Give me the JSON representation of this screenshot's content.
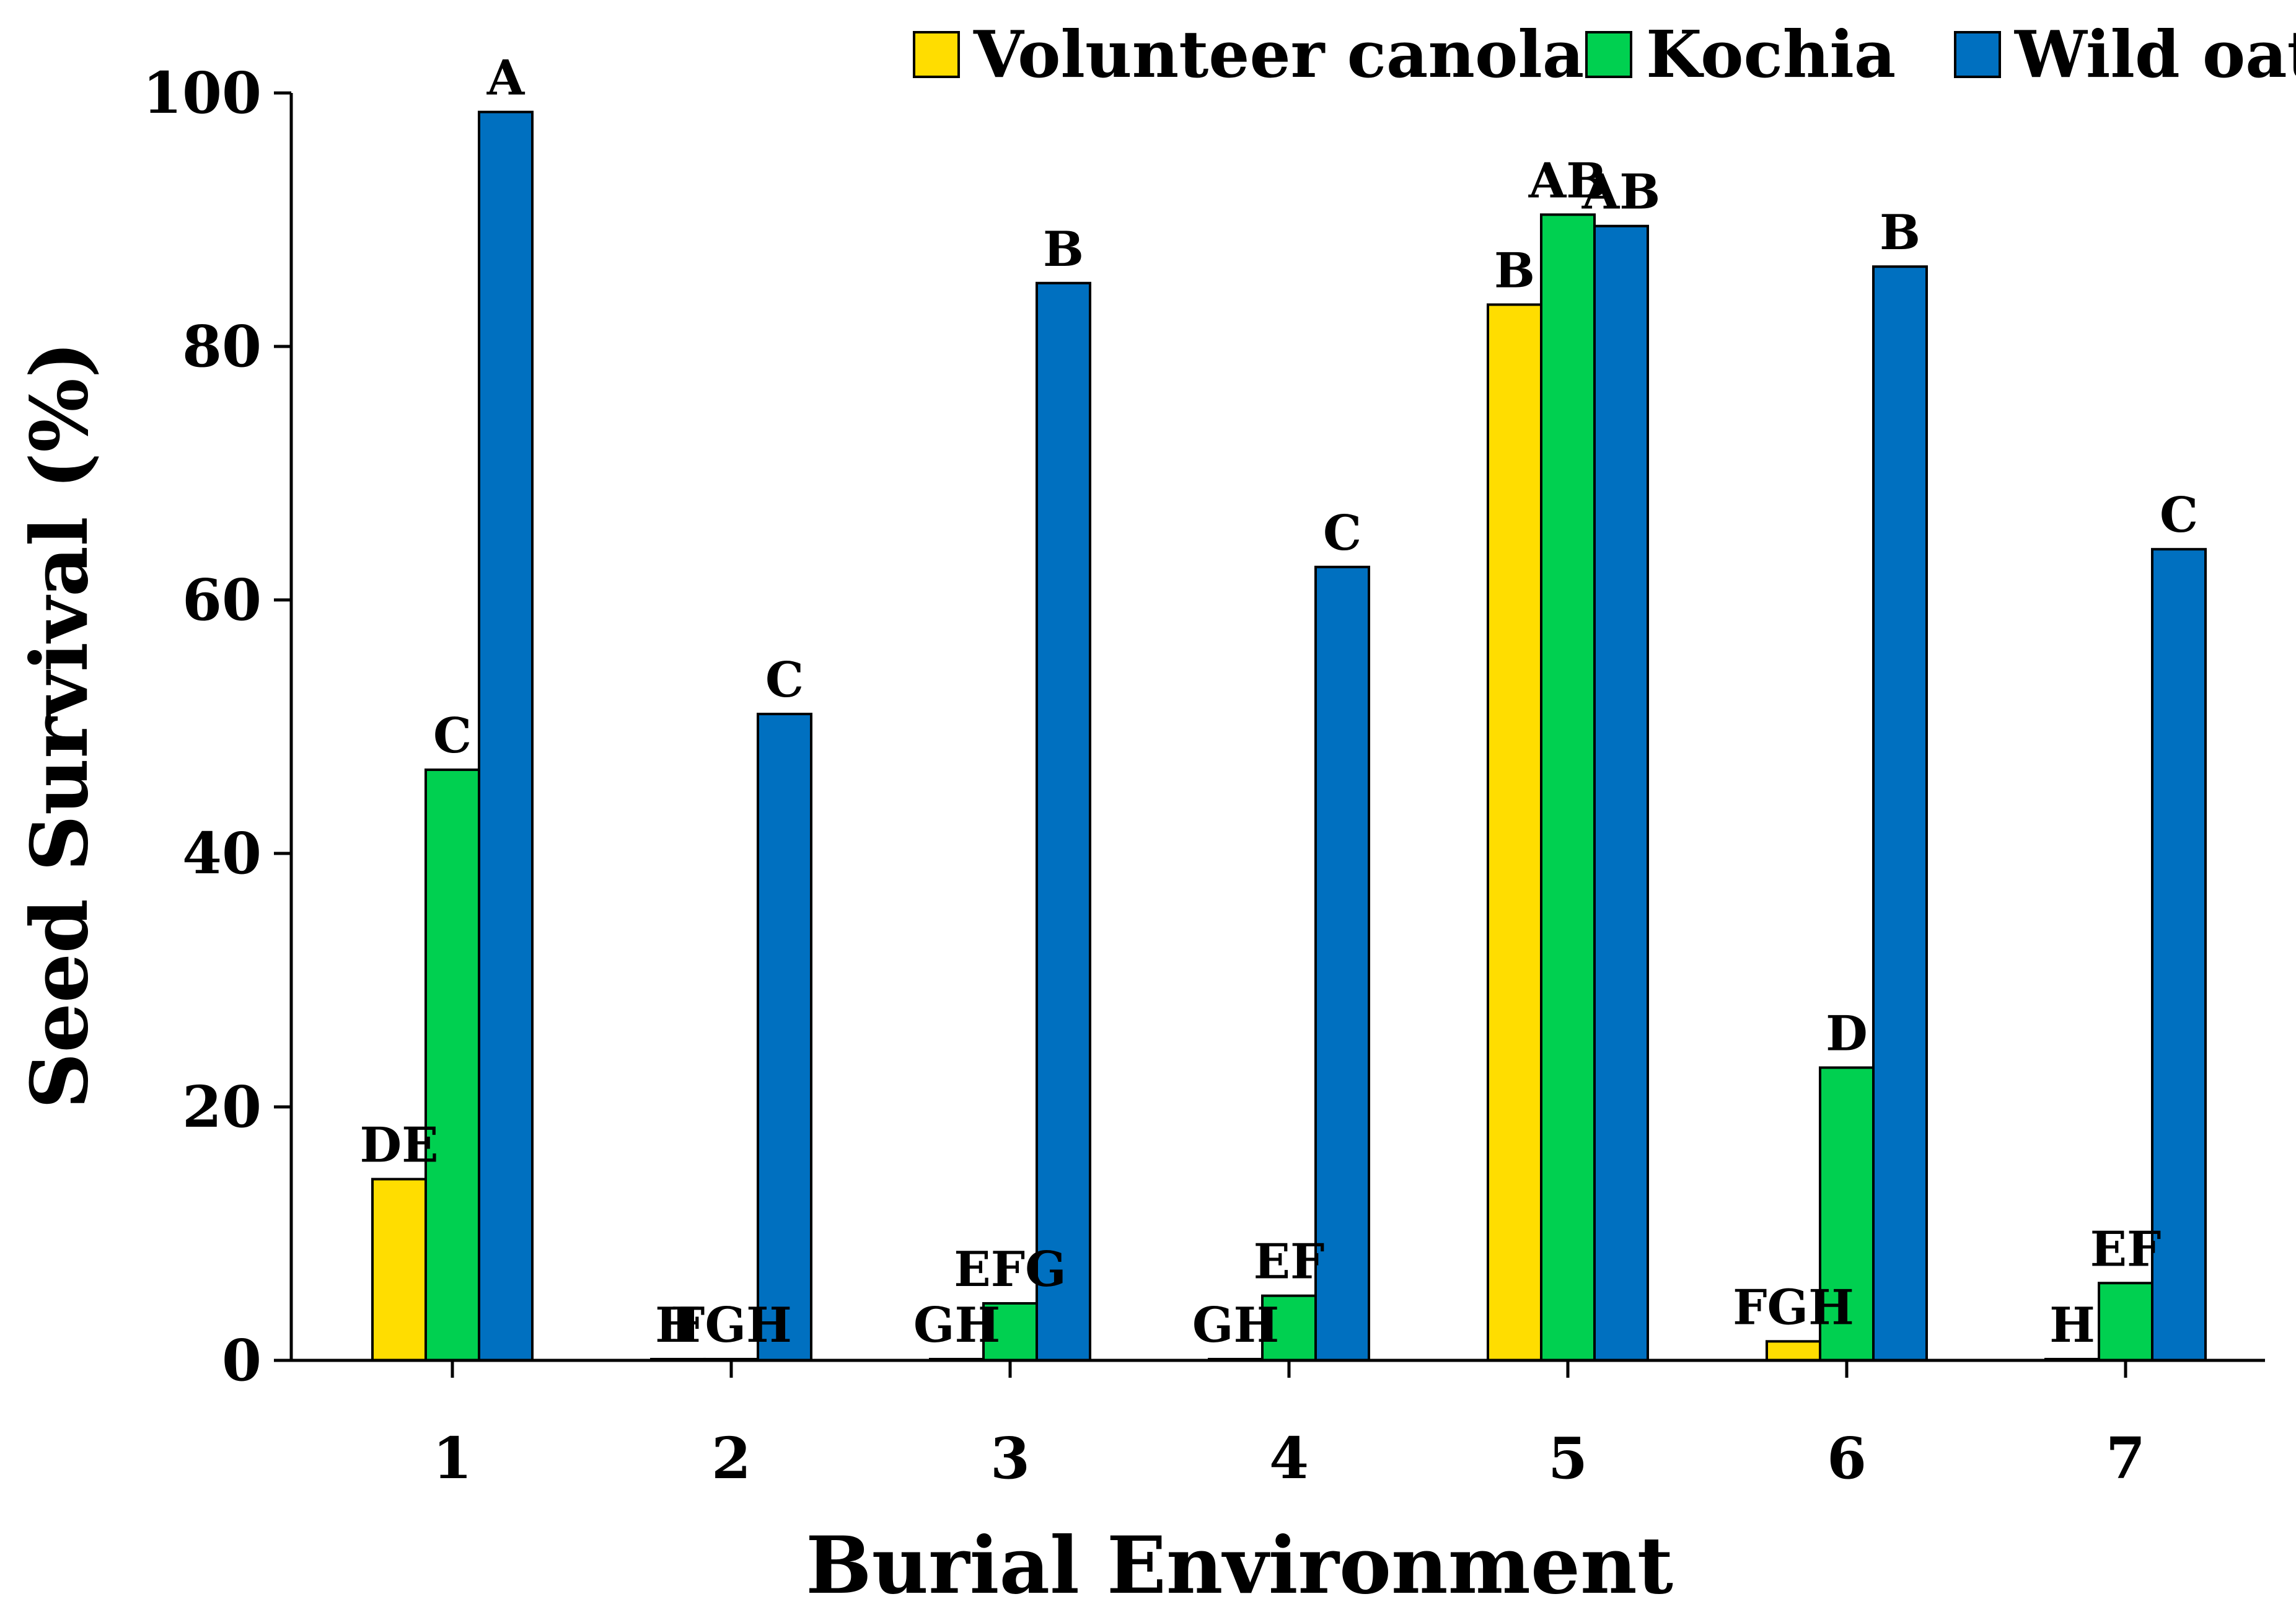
{
  "chart_data": {
    "type": "bar",
    "title": "",
    "xlabel": "Burial Environment",
    "ylabel": "Seed Survival (%)",
    "ylim": [
      0,
      100
    ],
    "yticks": [
      0,
      20,
      40,
      60,
      80,
      100
    ],
    "grid": false,
    "legend_position": "top-right",
    "categories": [
      "1",
      "2",
      "3",
      "4",
      "5",
      "6",
      "7"
    ],
    "series": [
      {
        "name": "Volunteer canola",
        "color": "#FFDD00",
        "values": [
          14.3,
          0.1,
          0.1,
          0.1,
          83.3,
          1.5,
          0.1
        ],
        "labels": [
          "DE",
          "H",
          "GH",
          "GH",
          "B",
          "FGH",
          "H"
        ]
      },
      {
        "name": "Kochia",
        "color": "#00D050",
        "values": [
          46.6,
          0.1,
          4.5,
          5.1,
          90.4,
          23.1,
          6.1
        ],
        "labels": [
          "C",
          "FGH",
          "EFG",
          "EF",
          "AB",
          "D",
          "EF"
        ]
      },
      {
        "name": "Wild oat",
        "color": "#0070C0",
        "values": [
          98.5,
          51.0,
          85.0,
          62.6,
          89.5,
          86.3,
          64.0
        ],
        "labels": [
          "A",
          "C",
          "B",
          "C",
          "AB",
          "B",
          "C"
        ]
      }
    ]
  }
}
